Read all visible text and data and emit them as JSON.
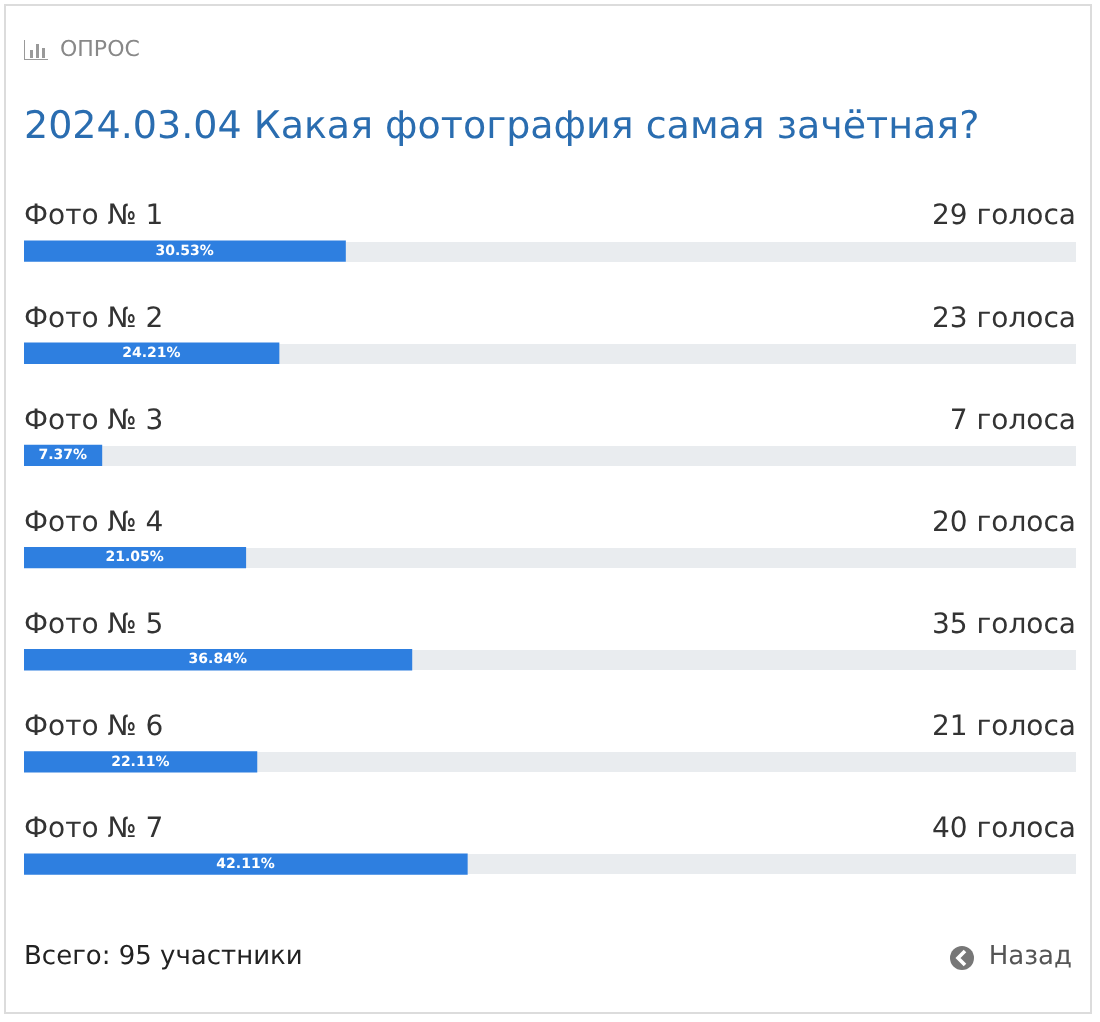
{
  "chart_data": {
    "type": "bar",
    "orientation": "horizontal",
    "title": "2024.03.04 Какая фотография самая зачётная?",
    "categories": [
      "Фото № 1",
      "Фото № 2",
      "Фото № 3",
      "Фото № 4",
      "Фото № 5",
      "Фото № 6",
      "Фото № 7"
    ],
    "values": [
      30.53,
      24.21,
      7.37,
      21.05,
      36.84,
      22.11,
      42.11
    ],
    "value_labels": [
      "30.53%",
      "24.21%",
      "7.37%",
      "21.05%",
      "36.84%",
      "22.11%",
      "42.11%"
    ],
    "color": "#2e7fe0",
    "xlim": [
      0,
      100
    ],
    "tick_labels": "y",
    "grid": false,
    "legend": false,
    "annotations": [
      "ОПРОС",
      "29 голоса",
      "23 голоса",
      "7 голоса",
      "20 голоса",
      "35 голоса",
      "21 голоса",
      "40 голоса",
      "Всего: 95 участники",
      "Назад"
    ]
  }
}
